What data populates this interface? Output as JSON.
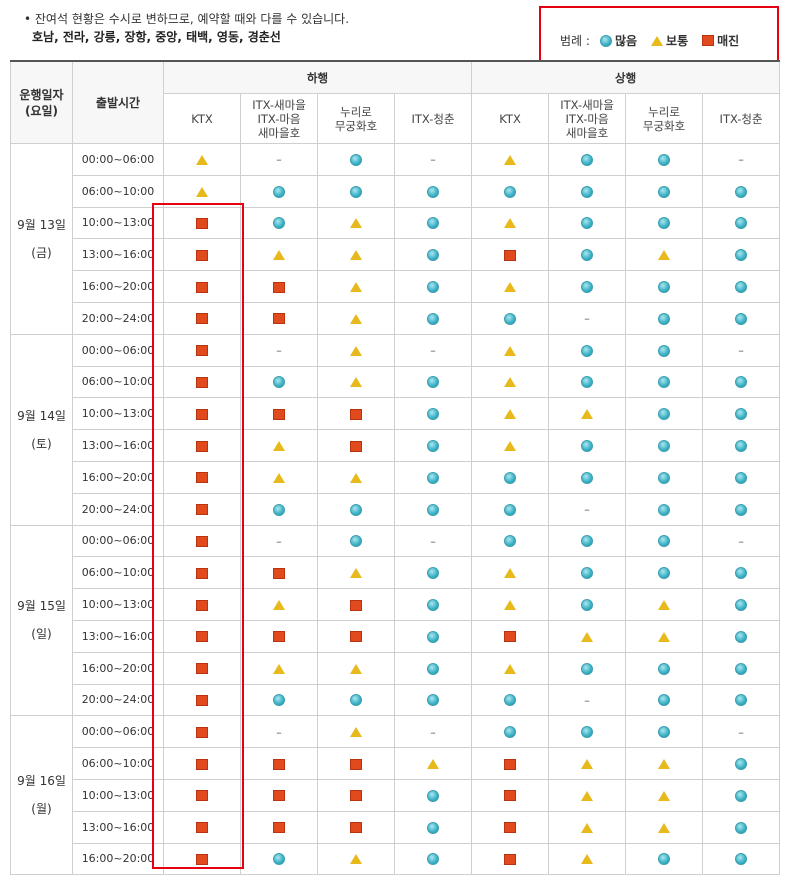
{
  "notice": {
    "line1": "• 잔여석 현황은 수시로 변하므로, 예약할 때와 다를 수 있습니다.",
    "line2": "호남, 전라, 강릉, 장항, 중앙, 태백, 영동, 경춘선"
  },
  "legend": {
    "title": "범례 :",
    "items": [
      {
        "icon": "circle",
        "label": "많음"
      },
      {
        "icon": "triangle",
        "label": "보통"
      },
      {
        "icon": "square",
        "label": "매진"
      }
    ]
  },
  "colors": {
    "highlight": "#e60012",
    "many": "#3fb5c8",
    "normal": "#e8b91a",
    "soldout": "#e04a1d"
  },
  "header": {
    "date_col": [
      "운행일자",
      "(요일)"
    ],
    "time_col": "출발시간",
    "groups": [
      "하행",
      "상행"
    ],
    "trains": [
      [
        "KTX"
      ],
      [
        "ITX-새마을",
        "ITX-마음",
        "새마을호"
      ],
      [
        "누리로",
        "무궁화호"
      ],
      [
        "ITX-청춘"
      ]
    ]
  },
  "days": [
    {
      "date": "9월 13일",
      "weekday": "(금)",
      "rows": [
        {
          "time": "00:00~06:00",
          "cells": [
            "T",
            "-",
            "C",
            "-",
            "T",
            "C",
            "C",
            "-"
          ]
        },
        {
          "time": "06:00~10:00",
          "cells": [
            "T",
            "C",
            "C",
            "C",
            "C",
            "C",
            "C",
            "C"
          ]
        },
        {
          "time": "10:00~13:00",
          "cells": [
            "S",
            "C",
            "T",
            "C",
            "T",
            "C",
            "C",
            "C"
          ]
        },
        {
          "time": "13:00~16:00",
          "cells": [
            "S",
            "T",
            "T",
            "C",
            "S",
            "C",
            "T",
            "C"
          ]
        },
        {
          "time": "16:00~20:00",
          "cells": [
            "S",
            "S",
            "T",
            "C",
            "T",
            "C",
            "C",
            "C"
          ]
        },
        {
          "time": "20:00~24:00",
          "cells": [
            "S",
            "S",
            "T",
            "C",
            "C",
            "-",
            "C",
            "C"
          ]
        }
      ]
    },
    {
      "date": "9월 14일",
      "weekday": "(토)",
      "rows": [
        {
          "time": "00:00~06:00",
          "cells": [
            "S",
            "-",
            "T",
            "-",
            "T",
            "C",
            "C",
            "-"
          ]
        },
        {
          "time": "06:00~10:00",
          "cells": [
            "S",
            "C",
            "T",
            "C",
            "T",
            "C",
            "C",
            "C"
          ]
        },
        {
          "time": "10:00~13:00",
          "cells": [
            "S",
            "S",
            "S",
            "C",
            "T",
            "T",
            "C",
            "C"
          ]
        },
        {
          "time": "13:00~16:00",
          "cells": [
            "S",
            "T",
            "S",
            "C",
            "T",
            "C",
            "C",
            "C"
          ]
        },
        {
          "time": "16:00~20:00",
          "cells": [
            "S",
            "T",
            "T",
            "C",
            "C",
            "C",
            "C",
            "C"
          ]
        },
        {
          "time": "20:00~24:00",
          "cells": [
            "S",
            "C",
            "C",
            "C",
            "C",
            "-",
            "C",
            "C"
          ]
        }
      ]
    },
    {
      "date": "9월 15일",
      "weekday": "(일)",
      "rows": [
        {
          "time": "00:00~06:00",
          "cells": [
            "S",
            "-",
            "C",
            "-",
            "C",
            "C",
            "C",
            "-"
          ]
        },
        {
          "time": "06:00~10:00",
          "cells": [
            "S",
            "S",
            "T",
            "C",
            "T",
            "C",
            "C",
            "C"
          ]
        },
        {
          "time": "10:00~13:00",
          "cells": [
            "S",
            "T",
            "S",
            "C",
            "T",
            "C",
            "T",
            "C"
          ]
        },
        {
          "time": "13:00~16:00",
          "cells": [
            "S",
            "S",
            "S",
            "C",
            "S",
            "T",
            "T",
            "C"
          ]
        },
        {
          "time": "16:00~20:00",
          "cells": [
            "S",
            "T",
            "T",
            "C",
            "T",
            "C",
            "C",
            "C"
          ]
        },
        {
          "time": "20:00~24:00",
          "cells": [
            "S",
            "C",
            "C",
            "C",
            "C",
            "-",
            "C",
            "C"
          ]
        }
      ]
    },
    {
      "date": "9월 16일",
      "weekday": "(월)",
      "rows": [
        {
          "time": "00:00~06:00",
          "cells": [
            "S",
            "-",
            "T",
            "-",
            "C",
            "C",
            "C",
            "-"
          ]
        },
        {
          "time": "06:00~10:00",
          "cells": [
            "S",
            "S",
            "S",
            "T",
            "S",
            "T",
            "T",
            "C"
          ]
        },
        {
          "time": "10:00~13:00",
          "cells": [
            "S",
            "S",
            "S",
            "C",
            "S",
            "T",
            "T",
            "C"
          ]
        },
        {
          "time": "13:00~16:00",
          "cells": [
            "S",
            "S",
            "S",
            "C",
            "S",
            "T",
            "T",
            "C"
          ]
        },
        {
          "time": "16:00~20:00",
          "cells": [
            "S",
            "C",
            "T",
            "C",
            "S",
            "T",
            "C",
            "C"
          ]
        }
      ]
    }
  ]
}
